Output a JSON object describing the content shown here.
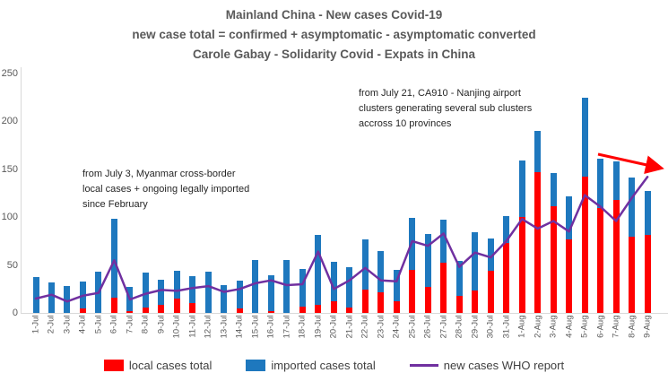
{
  "title": {
    "line1": "Mainland China - New cases Covid-19",
    "line2": "new case total  = confirmed + asymptomatic - asymptomatic converted",
    "line3": "Carole Gabay - Solidarity Covid - Expats in China"
  },
  "annotations": {
    "myanmar": "from July 3,  Myanmar cross-border\nlocal cases + ongoing legally imported\nsince February",
    "nanjing": "from July 21, CA910 - Nanjing airport\nclusters generating several sub clusters\naccross 10 provinces"
  },
  "legend": {
    "local": "local cases total",
    "imported": "imported cases total",
    "who": "new cases WHO report"
  },
  "colors": {
    "local": "#FF0000",
    "imported": "#1E78BE",
    "who": "#7030A0",
    "arrow": "#FF0000",
    "axis_text": "#595959",
    "axis_line": "#d9d9d9"
  },
  "chart_data": {
    "type": "bar",
    "stacked": true,
    "grid": false,
    "legend_position": "bottom",
    "ylim": [
      0,
      250
    ],
    "ytick_step": 50,
    "yticks": [
      0,
      50,
      100,
      150,
      200,
      250
    ],
    "categories": [
      "1-Jul",
      "2-Jul",
      "3-Jul",
      "4-Jul",
      "5-Jul",
      "6-Jul",
      "7-Jul",
      "8-Jul",
      "9-Jul",
      "10-Jul",
      "11-Jul",
      "12-Jul",
      "13-Jul",
      "14-Jul",
      "15-Jul",
      "16-Jul",
      "17-Jul",
      "18-Jul",
      "19-Jul",
      "20-Jul",
      "21-Jul",
      "22-Jul",
      "23-Jul",
      "24-Jul",
      "25-Jul",
      "26-Jul",
      "27-Jul",
      "28-Jul",
      "29-Jul",
      "30-Jul",
      "31-Jul",
      "1-Aug",
      "2-Aug",
      "3-Aug",
      "4-Aug",
      "5-Aug",
      "6-Aug",
      "7-Aug",
      "8-Aug",
      "9-Aug"
    ],
    "series": [
      {
        "name": "local cases total",
        "color": "#FF0000",
        "values": [
          0,
          0,
          0,
          5,
          0,
          16,
          2,
          6,
          8,
          15,
          10,
          0,
          0,
          5,
          0,
          2,
          0,
          7,
          8,
          12,
          6,
          24,
          22,
          12,
          45,
          27,
          52,
          18,
          23,
          44,
          73,
          100,
          147,
          111,
          77,
          142,
          110,
          118,
          80,
          81
        ]
      },
      {
        "name": "imported cases total",
        "color": "#1E78BE",
        "values": [
          37,
          32,
          28,
          28,
          43,
          82,
          25,
          36,
          27,
          29,
          28,
          43,
          29,
          29,
          55,
          37,
          55,
          39,
          73,
          41,
          42,
          53,
          43,
          33,
          54,
          55,
          45,
          36,
          61,
          34,
          28,
          59,
          43,
          35,
          45,
          83,
          51,
          40,
          61,
          46
        ]
      }
    ],
    "line_series": {
      "name": "new cases WHO report",
      "color": "#7030A0",
      "values": [
        15,
        19,
        12,
        18,
        21,
        55,
        14,
        20,
        24,
        23,
        26,
        28,
        22,
        25,
        31,
        34,
        29,
        30,
        64,
        25,
        34,
        47,
        34,
        33,
        75,
        70,
        83,
        48,
        63,
        58,
        75,
        98,
        88,
        96,
        85,
        123,
        111,
        96,
        120,
        142
      ]
    },
    "trend_arrow": {
      "from": [
        667,
        172
      ],
      "to": [
        735,
        187
      ]
    }
  }
}
